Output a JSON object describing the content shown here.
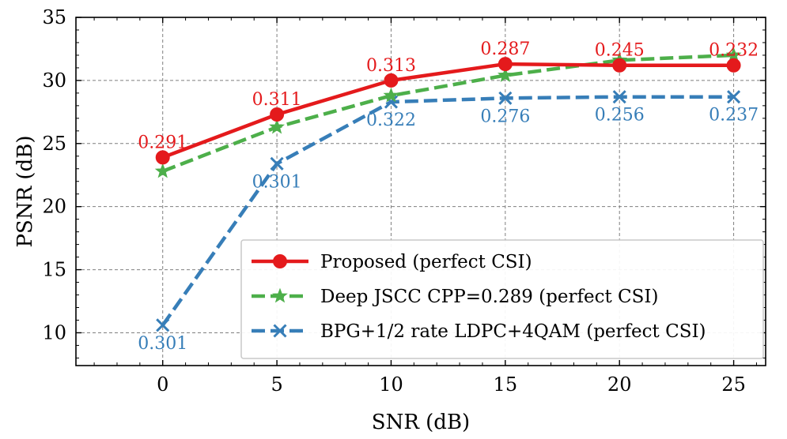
{
  "chart_data": {
    "type": "line",
    "title": "",
    "xlabel": "SNR (dB)",
    "ylabel": "PSNR (dB)",
    "x": [
      0,
      5,
      10,
      15,
      20,
      25
    ],
    "xlim": [
      -3.8,
      26.4
    ],
    "ylim": [
      7.4,
      35
    ],
    "xticks": [
      "0",
      "5",
      "10",
      "15",
      "20",
      "25"
    ],
    "yticks": [
      "10",
      "15",
      "20",
      "25",
      "30",
      "35"
    ],
    "grid": true,
    "legend_position": "lower-right",
    "series": [
      {
        "name": "Proposed (perfect CSI)",
        "color": "#e41a1c",
        "linestyle": "solid",
        "marker": "circle",
        "values": [
          23.9,
          27.3,
          30.0,
          31.3,
          31.2,
          31.2
        ],
        "labels": [
          "0.291",
          "0.311",
          "0.313",
          "0.287",
          "0.245",
          "0.232"
        ],
        "label_position": "above"
      },
      {
        "name": "Deep JSCC CPP=0.289 (perfect CSI)",
        "color": "#4daf4a",
        "linestyle": "dashed",
        "marker": "star",
        "values": [
          22.8,
          26.3,
          28.8,
          30.4,
          31.6,
          32.0
        ],
        "labels": [],
        "label_position": "none"
      },
      {
        "name": "BPG+1/2 rate LDPC+4QAM (perfect CSI)",
        "color": "#377eb8",
        "linestyle": "dashed",
        "marker": "x",
        "values": [
          10.6,
          23.4,
          28.3,
          28.6,
          28.7,
          28.7
        ],
        "labels": [
          "0.301",
          "0.301",
          "0.322",
          "0.276",
          "0.256",
          "0.237"
        ],
        "label_position": "below"
      }
    ]
  }
}
